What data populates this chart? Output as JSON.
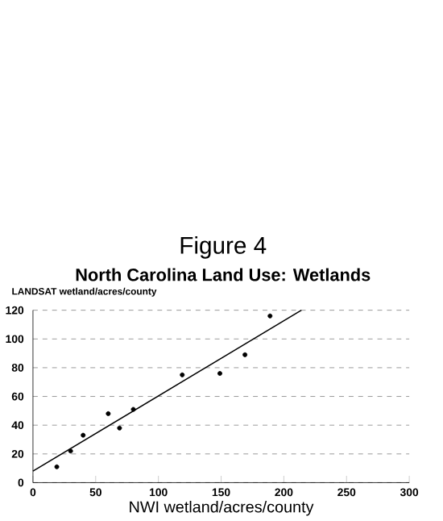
{
  "chart_data": {
    "type": "scatter",
    "title": "Figure 4",
    "subtitle": "North Carolina Land Use: Wetlands",
    "xlabel": "NWI wetland/acres/county",
    "ylabel": "LANDSAT wetland/acres/county",
    "series": [
      {
        "type": "scatter",
        "color": "#000000",
        "marker": "circle",
        "x": [
          19,
          30,
          40,
          60,
          69,
          80,
          119,
          149,
          169,
          189
        ],
        "values": [
          11,
          22,
          33,
          48,
          38,
          51,
          75,
          76,
          89,
          116
        ]
      },
      {
        "type": "line",
        "color": "#000000",
        "x": [
          0,
          214
        ],
        "values": [
          8,
          120
        ]
      }
    ],
    "xlim": [
      0,
      300
    ],
    "ylim": [
      0,
      120
    ],
    "xticks": [
      0,
      50,
      100,
      150,
      200,
      250,
      300
    ],
    "yticks": [
      0,
      20,
      40,
      60,
      80,
      100,
      120
    ],
    "grid": "y"
  }
}
